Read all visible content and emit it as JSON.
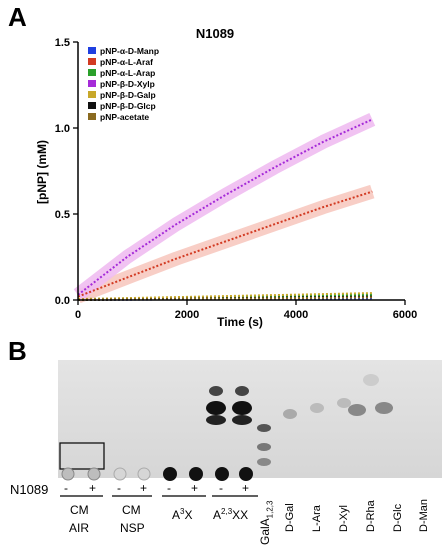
{
  "panels": {
    "a": "A",
    "b": "B"
  },
  "chart_data": {
    "type": "line",
    "title": "N1089",
    "xlabel": "Time (s)",
    "ylabel": "[pNP] (mM)",
    "xlim": [
      0,
      6000
    ],
    "ylim": [
      0,
      1.5
    ],
    "xticks": [
      "0",
      "2000",
      "4000",
      "6000"
    ],
    "yticks": [
      "0.0",
      "0.5",
      "1.0",
      "1.5"
    ],
    "legend_position": "top-left",
    "series": [
      {
        "name": "pNP-α-D-Manp",
        "color": "#1f3fe0",
        "x": [
          0,
          5400
        ],
        "y": [
          0.0,
          0.01
        ]
      },
      {
        "name": "pNP-α-L-Araf",
        "color": "#d23a22",
        "band": "#f7c9c0",
        "x": [
          0,
          900,
          1800,
          2700,
          3600,
          4500,
          5400
        ],
        "y": [
          0.02,
          0.13,
          0.24,
          0.34,
          0.44,
          0.54,
          0.63
        ]
      },
      {
        "name": "pNP-α-L-Arap",
        "color": "#2aa02a",
        "x": [
          0,
          5400
        ],
        "y": [
          0.005,
          0.03
        ]
      },
      {
        "name": "pNP-β-D-Xylp",
        "color": "#a52bd8",
        "band": "#efbdf1",
        "x": [
          0,
          900,
          1800,
          2700,
          3600,
          4500,
          5400
        ],
        "y": [
          0.03,
          0.25,
          0.44,
          0.61,
          0.77,
          0.92,
          1.05
        ]
      },
      {
        "name": "pNP-β-D-Galp",
        "color": "#c8a82a",
        "x": [
          0,
          5400
        ],
        "y": [
          0.005,
          0.04
        ]
      },
      {
        "name": "pNP-β-D-Glcp",
        "color": "#111111",
        "x": [
          0,
          5400
        ],
        "y": [
          0.0,
          0.02
        ]
      },
      {
        "name": "pNP-acetate",
        "color": "#8a6a20",
        "x": [
          0,
          5400
        ],
        "y": [
          0.0,
          0.015
        ]
      }
    ]
  },
  "tlc": {
    "sample_row_label": "N1089",
    "signs": [
      "-",
      "+",
      "-",
      "+",
      "-",
      "+",
      "-",
      "+"
    ],
    "groups": [
      "CM",
      "AIR",
      "CM",
      "NSP",
      "A",
      "3",
      "X",
      "A",
      "2,3",
      "XX"
    ],
    "standards": [
      "GalA",
      "1,2,3",
      "D-Gal",
      "L-Ara",
      "D-Xyl",
      "D-Rha",
      "D-Glc",
      "D-Man"
    ]
  }
}
